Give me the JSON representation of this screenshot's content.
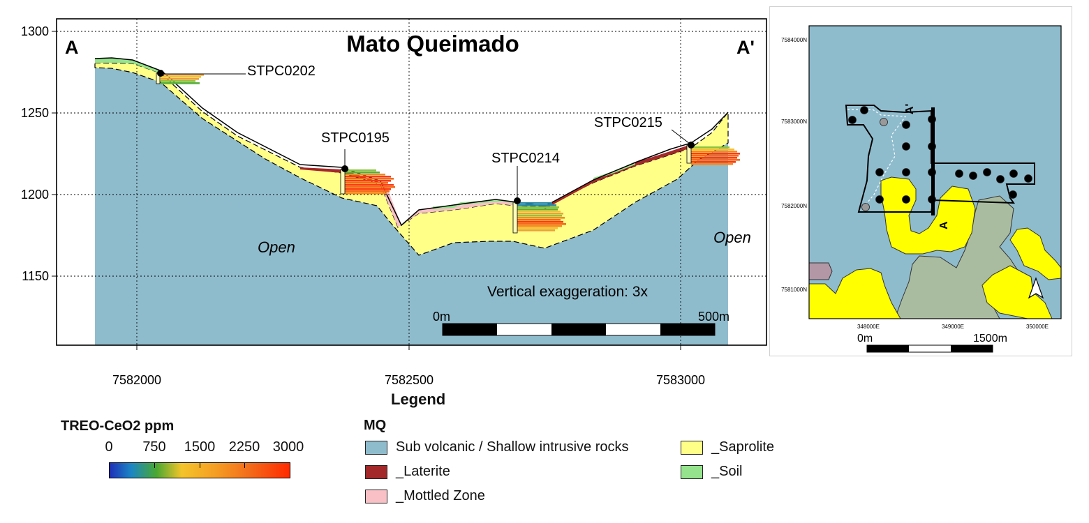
{
  "section": {
    "title": "Mato Queimado",
    "left_label": "A",
    "right_label": "A'",
    "y_ticks": [
      "1300",
      "1250",
      "1200",
      "1150"
    ],
    "x_ticks": [
      "7582000",
      "7582500",
      "7583000"
    ],
    "drillholes": [
      {
        "label": "STPC0202"
      },
      {
        "label": "STPC0195"
      },
      {
        "label": "STPC0214"
      },
      {
        "label": "STPC0215"
      }
    ],
    "open_left": "Open",
    "open_right": "Open",
    "exaggeration": "Vertical exaggeration: 3x",
    "scale_start": "0m",
    "scale_end": "500m"
  },
  "map": {
    "y_ticks": [
      "7584000N",
      "7583000N",
      "7582000N",
      "7581000N"
    ],
    "x_ticks": [
      "348000E",
      "349000E",
      "350000E"
    ],
    "section_start": "A",
    "section_end": "A'",
    "scale_start": "0m",
    "scale_end": "1500m"
  },
  "legend": {
    "title": "Legend",
    "colorbar_title": "TREO-CeO2 ppm",
    "colorbar_ticks": [
      "0",
      "750",
      "1500",
      "2250",
      "3000"
    ],
    "group_title": "MQ",
    "items": [
      {
        "label": "Sub volcanic / Shallow intrusive rocks",
        "color": "#8fbccd"
      },
      {
        "label": "_Laterite",
        "color": "#a3282a"
      },
      {
        "label": "_Mottled Zone",
        "color": "#f9c1c6"
      },
      {
        "label": "_Saprolite",
        "color": "#ffff88"
      },
      {
        "label": "_Soil",
        "color": "#95e38d"
      }
    ]
  },
  "colors": {
    "bedrock": "#8fbccd",
    "saprolite": "#ffff88",
    "mottled": "#f9c1c6",
    "laterite": "#a3282a",
    "soil": "#95e38d",
    "map_gray": "#aabc9f",
    "map_purple": "#b397a5"
  }
}
